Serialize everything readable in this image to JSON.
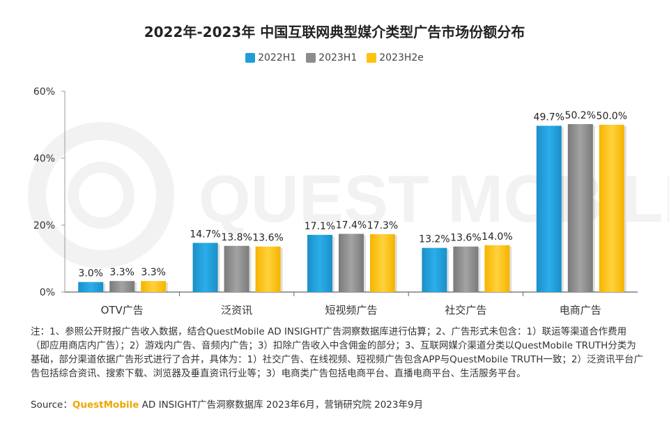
{
  "chart_data": {
    "type": "bar",
    "title": "2022年-2023年 中国互联网典型媒介类型广告市场份额分布",
    "categories": [
      "OTV广告",
      "泛资讯",
      "短视频广告",
      "社交广告",
      "电商广告"
    ],
    "series": [
      {
        "name": "2022H1",
        "color": "#1f9ed9",
        "values": [
          3.0,
          14.7,
          17.1,
          13.2,
          49.7
        ],
        "labels": [
          "3.0%",
          "14.7%",
          "17.1%",
          "13.2%",
          "49.7%"
        ]
      },
      {
        "name": "2023H1",
        "color": "#8c8c8c",
        "values": [
          3.3,
          13.8,
          17.4,
          13.6,
          50.2
        ],
        "labels": [
          "3.3%",
          "13.8%",
          "17.4%",
          "13.6%",
          "50.2%"
        ]
      },
      {
        "name": "2023H2e",
        "color": "#ffc20e",
        "values": [
          3.3,
          13.6,
          17.3,
          14.0,
          50.0
        ],
        "labels": [
          "3.3%",
          "13.6%",
          "17.3%",
          "14.0%",
          "50.0%"
        ]
      }
    ],
    "ylim": [
      0,
      60
    ],
    "yticks": [
      0,
      20,
      40,
      60
    ],
    "ytick_labels": [
      "0%",
      "20%",
      "40%",
      "60%"
    ],
    "xlabel": "",
    "ylabel": "",
    "legend_position": "top-center"
  },
  "notes": "注：1、参照公开财报广告收入数据，结合QuestMobile AD INSIGHT广告洞察数据库进行估算；2、广告形式未包含：1）联运等渠道合作费用（即应用商店内广告）；2）游戏内广告、音频内广告；3）扣除广告收入中含佣金的部分；3、互联网媒介渠道分类以QuestMobile TRUTH分类为基础，部分渠道依据广告形式进行了合并，具体为：1）社交广告、在线视频、短视频广告包含APP与QuestMobile TRUTH一致；2）泛资讯平台广告包括综合资讯、搜索下载、浏览器及垂直资讯行业等；3）电商类广告包括电商平台、直播电商平台、生活服务平台。",
  "source": {
    "prefix": "Source：",
    "brand": "QuestMobile",
    "rest": " AD INSIGHT广告洞察数据库 2023年6月，营销研究院 2023年9月"
  },
  "watermark": "QUEST MOBILE"
}
